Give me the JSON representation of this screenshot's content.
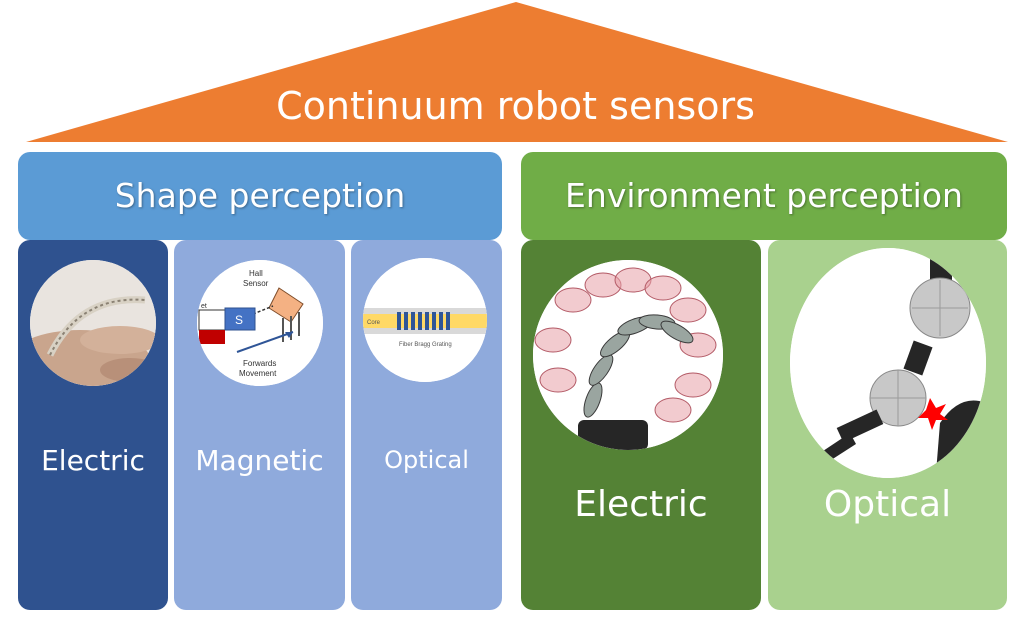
{
  "title": "Continuum robot sensors",
  "colors": {
    "roof": "#ed7d31",
    "shape_header": "#5b9bd5",
    "env_header": "#70ad47",
    "electric_shape": "#2f528f",
    "magnetic": "#8faadc",
    "optical_shape": "#8faadc",
    "electric_env": "#548235",
    "optical_env": "#a9d18e"
  },
  "shape_perception": {
    "label": "Shape perception",
    "columns": [
      {
        "label": "Electric",
        "icon": "flexible-sensor-finger-photo"
      },
      {
        "label": "Magnetic",
        "icon": "hall-sensor-magnet-diagram",
        "image_text": [
          "Hall",
          "Sensor",
          "et",
          "Forwards",
          "Movement"
        ]
      },
      {
        "label": "Optical",
        "icon": "fiber-bragg-grating-diagram",
        "image_text": [
          "Core",
          "Fiber Bragg Grating"
        ]
      }
    ]
  },
  "environment_perception": {
    "label": "Environment perception",
    "columns": [
      {
        "label": "Electric",
        "icon": "segmented-continuum-robot-render"
      },
      {
        "label": "Optical",
        "icon": "spherical-joint-robot-collision-render"
      }
    ]
  }
}
